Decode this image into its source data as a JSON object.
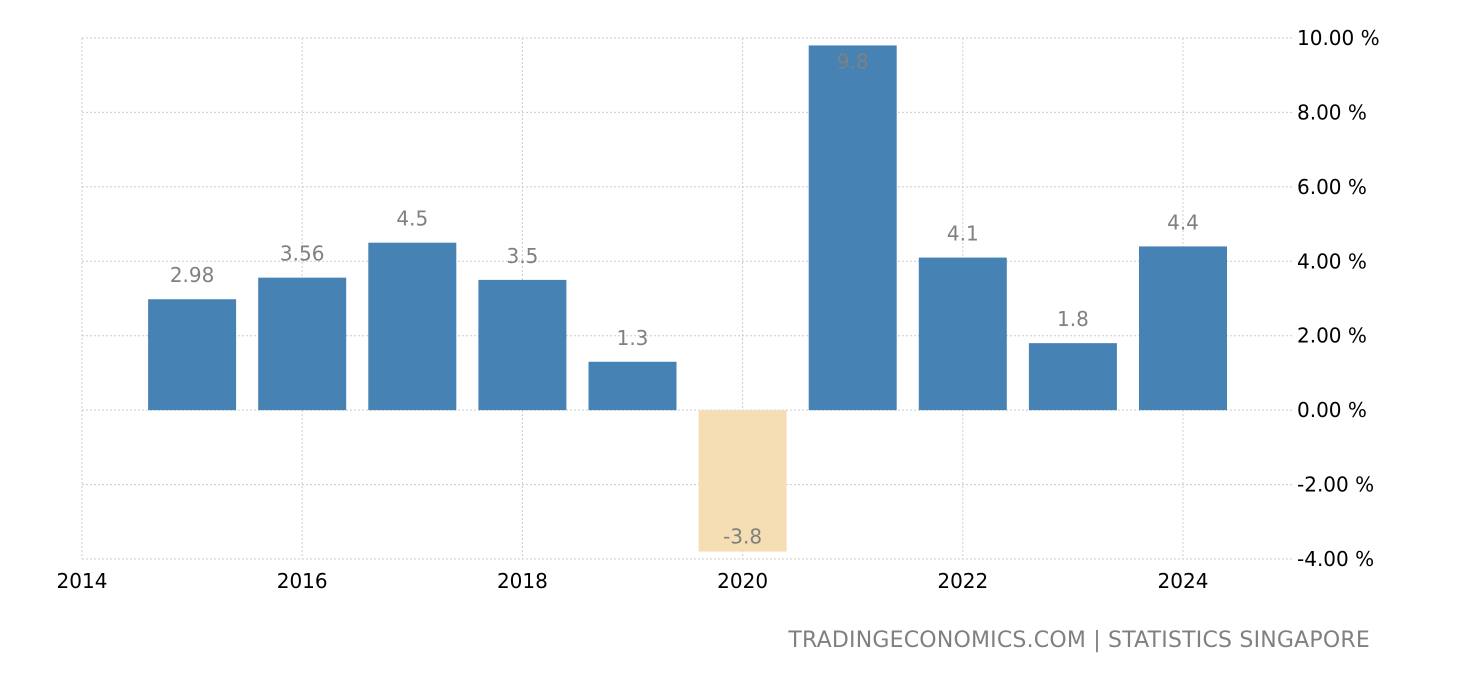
{
  "chart_data": {
    "type": "bar",
    "title": "",
    "xlabel": "",
    "ylabel": "",
    "categories": [
      "2015",
      "2016",
      "2017",
      "2018",
      "2019",
      "2020",
      "2021",
      "2022",
      "2023",
      "2024"
    ],
    "values": [
      2.98,
      3.56,
      4.5,
      3.5,
      1.3,
      -3.8,
      9.8,
      4.1,
      1.8,
      4.4
    ],
    "data_labels": [
      "2.98",
      "3.56",
      "4.5",
      "3.5",
      "1.3",
      "-3.8",
      "9.8",
      "4.1",
      "1.8",
      "4.4"
    ],
    "ylim": [
      -4,
      10
    ],
    "xlim": [
      2014,
      2025
    ],
    "y_ticks": [
      -4,
      -2,
      0,
      2,
      4,
      6,
      8,
      10
    ],
    "y_tick_labels": [
      "-4.00 %",
      "-2.00 %",
      "0.00 %",
      "2.00 %",
      "4.00 %",
      "6.00 %",
      "8.00 %",
      "10.00 %"
    ],
    "x_ticks": [
      2014,
      2016,
      2018,
      2020,
      2022,
      2024
    ],
    "x_tick_labels": [
      "2014",
      "2016",
      "2018",
      "2020",
      "2022",
      "2024"
    ],
    "y_axis_position": "right",
    "grid": true,
    "colors": {
      "positive": "#4682b4",
      "negative": "#f5deb3",
      "grid": "#cccccc",
      "data_label": "#808080"
    }
  },
  "source": "TRADINGECONOMICS.COM | STATISTICS SINGAPORE"
}
